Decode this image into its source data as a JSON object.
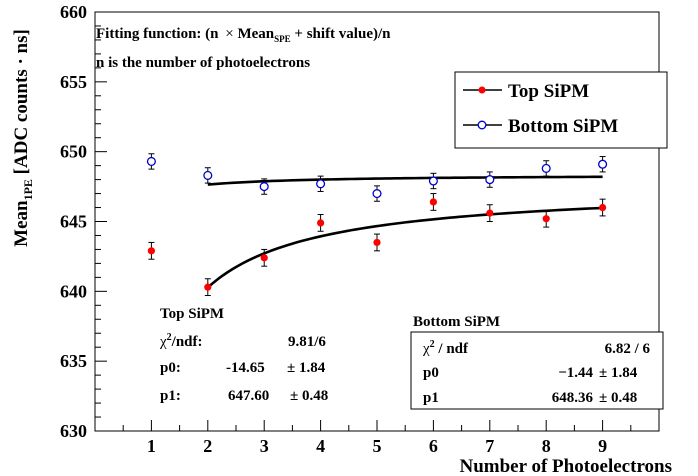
{
  "chart_data": {
    "type": "scatter",
    "x": [
      1,
      2,
      3,
      4,
      5,
      6,
      7,
      8,
      9
    ],
    "xlabel": "Number of Photoelectrons",
    "ylabel_main": "Mean",
    "ylabel_sub": "1PE",
    "ylabel_rest": " [ADC counts · ns]",
    "xlim": [
      0,
      10
    ],
    "ylim": [
      630,
      660
    ],
    "xticks": [
      1,
      2,
      3,
      4,
      5,
      6,
      7,
      8,
      9
    ],
    "yticks": [
      630,
      635,
      640,
      645,
      650,
      655,
      660
    ],
    "series": [
      {
        "name": "Top SiPM",
        "marker": "filled-circle",
        "color": "#ff0000",
        "values": [
          642.9,
          640.3,
          642.4,
          644.9,
          643.5,
          646.4,
          645.6,
          645.2,
          646.0
        ],
        "errors": [
          0.6,
          0.6,
          0.6,
          0.6,
          0.6,
          0.6,
          0.6,
          0.6,
          0.6
        ],
        "fit": {
          "p0": -14.65,
          "p1": 647.6,
          "x_range": [
            2,
            9
          ]
        }
      },
      {
        "name": "Bottom SiPM",
        "marker": "open-circle",
        "color": "#0000cc",
        "values": [
          649.3,
          648.3,
          647.5,
          647.7,
          647.0,
          647.9,
          648.0,
          648.8,
          649.1
        ],
        "errors": [
          0.55,
          0.55,
          0.55,
          0.55,
          0.55,
          0.55,
          0.55,
          0.55,
          0.55
        ],
        "fit": {
          "p0": -1.44,
          "p1": 648.36,
          "x_range": [
            2,
            9
          ]
        }
      }
    ],
    "annotations": {
      "line1_a": "Fitting function: (n ",
      "line1_times": "×",
      "line1_b": " Mean",
      "line1_sub": "SPE",
      "line1_c": " + shift value)/n",
      "line2": "n is the number of photoelectrons"
    },
    "stats_top": {
      "title": "Top SiPM",
      "chi_sym": "χ",
      "chi_rest": "/ndf:",
      "chi_val": "9.81/6",
      "p0_label": "p0:",
      "p0_val": "-14.65",
      "p0_err": "± 1.84",
      "p1_label": "p1:",
      "p1_val": "647.60",
      "p1_err": "± 0.48"
    },
    "stats_bottom": {
      "title": "Bottom SiPM",
      "chi_sym": "χ",
      "chi_rest": " / ndf",
      "chi_val": "6.82 / 6",
      "p0_label": "p0",
      "p0_val": "−1.44",
      "p0_err": "± 1.84",
      "p1_label": "p1",
      "p1_val": "648.36",
      "p1_err": "± 0.48"
    },
    "legend_position": "top-right"
  }
}
